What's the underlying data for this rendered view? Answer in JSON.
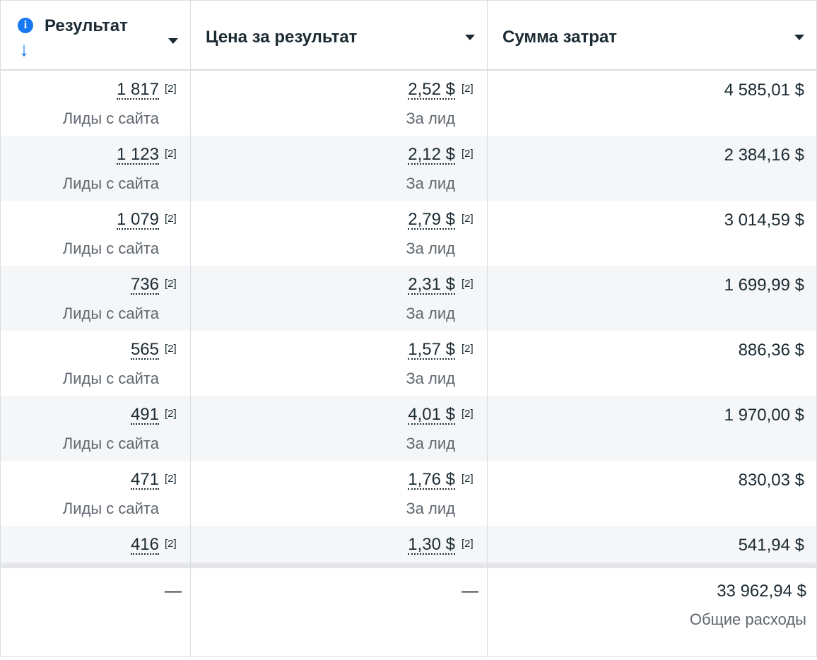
{
  "header": {
    "columns": [
      "Результат",
      "Цена за результат",
      "Сумма затрат"
    ]
  },
  "table": {
    "footnote": "[2]",
    "rows": [
      {
        "result": "1 817",
        "result_label": "Лиды с сайта",
        "cost": "2,52 $",
        "cost_label": "За лид",
        "spend": "4 585,01 $"
      },
      {
        "result": "1 123",
        "result_label": "Лиды с сайта",
        "cost": "2,12 $",
        "cost_label": "За лид",
        "spend": "2 384,16 $"
      },
      {
        "result": "1 079",
        "result_label": "Лиды с сайта",
        "cost": "2,79 $",
        "cost_label": "За лид",
        "spend": "3 014,59 $"
      },
      {
        "result": "736",
        "result_label": "Лиды с сайта",
        "cost": "2,31 $",
        "cost_label": "За лид",
        "spend": "1 699,99 $"
      },
      {
        "result": "565",
        "result_label": "Лиды с сайта",
        "cost": "1,57 $",
        "cost_label": "За лид",
        "spend": "886,36 $"
      },
      {
        "result": "491",
        "result_label": "Лиды с сайта",
        "cost": "4,01 $",
        "cost_label": "За лид",
        "spend": "1 970,00 $"
      },
      {
        "result": "471",
        "result_label": "Лиды с сайта",
        "cost": "1,76 $",
        "cost_label": "За лид",
        "spend": "830,03 $"
      },
      {
        "result": "416",
        "cost": "1,30 $",
        "spend": "541,94 $"
      }
    ]
  },
  "footer": {
    "result": "—",
    "cost": "—",
    "spend": "33 962,94 $",
    "spend_label": "Общие расходы"
  }
}
